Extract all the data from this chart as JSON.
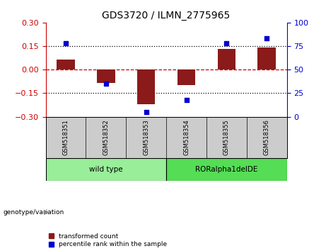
{
  "title": "GDS3720 / ILMN_2775965",
  "samples": [
    "GSM518351",
    "GSM518352",
    "GSM518353",
    "GSM518354",
    "GSM518355",
    "GSM518356"
  ],
  "bar_values": [
    0.065,
    -0.085,
    -0.22,
    -0.1,
    0.13,
    0.14
  ],
  "percentile_values": [
    78,
    35,
    5,
    18,
    78,
    83
  ],
  "ylim_left": [
    -0.3,
    0.3
  ],
  "ylim_right": [
    0,
    100
  ],
  "yticks_left": [
    -0.3,
    -0.15,
    0,
    0.15,
    0.3
  ],
  "yticks_right": [
    0,
    25,
    50,
    75,
    100
  ],
  "hlines_dotted": [
    0.15,
    -0.15
  ],
  "hline_dashed": 0,
  "bar_color": "#8B1A1A",
  "dot_color": "#0000CC",
  "groups": [
    {
      "label": "wild type",
      "indices": [
        0,
        1,
        2
      ],
      "color": "#99EE99"
    },
    {
      "label": "RORalpha1delDE",
      "indices": [
        3,
        4,
        5
      ],
      "color": "#55DD55"
    }
  ],
  "group_label": "genotype/variation",
  "legend_items": [
    {
      "label": "transformed count",
      "color": "#8B1A1A"
    },
    {
      "label": "percentile rank within the sample",
      "color": "#0000CC"
    }
  ],
  "tick_color_left": "#CC0000",
  "tick_color_right": "#0000CC",
  "zero_line_color": "#CC0000",
  "bg_color": "#ffffff",
  "bar_width": 0.45
}
